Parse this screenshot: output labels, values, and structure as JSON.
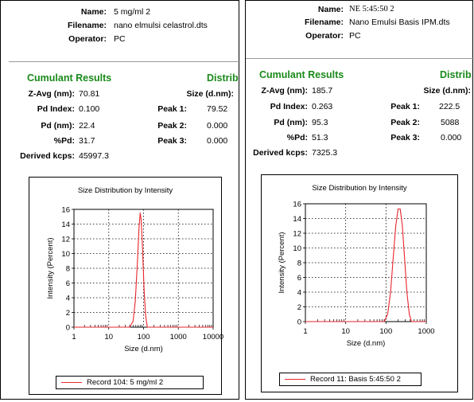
{
  "left": {
    "header": {
      "name_label": "Name:",
      "name_value": "5 mg/ml 2",
      "filename_label": "Filename:",
      "filename_value": "nano elmulsi celastrol.dts",
      "operator_label": "Operator:",
      "operator_value": "PC"
    },
    "cumulant_title": "Cumulant Results",
    "distrib_title": "Distrib",
    "size_header": "Size (d.nm):",
    "zavg_label": "Z-Avg (nm):",
    "zavg_value": "70.81",
    "pdi_label": "Pd Index:",
    "pdi_value": "0.100",
    "pd_label": "Pd (nm):",
    "pd_value": "22.4",
    "pctpd_label": "%Pd:",
    "pctpd_value": "31.7",
    "kcps_label": "Derived kcps:",
    "kcps_value": "45997.3",
    "peak1_label": "Peak 1:",
    "peak1_value": "79.52",
    "peak2_label": "Peak 2:",
    "peak2_value": "0.000",
    "peak3_label": "Peak 3:",
    "peak3_value": "0.000",
    "legend": "Record 104: 5 mg/ml 2"
  },
  "right": {
    "header": {
      "name_label": "Name:",
      "name_value": "NE 5:45:50 2",
      "filename_label": "Filename:",
      "filename_value": "Nano Emulsi Basis IPM.dts",
      "operator_label": "Operator:",
      "operator_value": "PC"
    },
    "cumulant_title": "Cumulant Results",
    "distrib_title": "Distrib",
    "size_header": "Size (d.nm):",
    "zavg_label": "Z-Avg (nm):",
    "zavg_value": "185.7",
    "pdi_label": "Pd Index:",
    "pdi_value": "0.263",
    "pd_label": "Pd (nm):",
    "pd_value": "95.3",
    "pctpd_label": "%Pd:",
    "pctpd_value": "51.3",
    "kcps_label": "Derived kcps:",
    "kcps_value": "7325.3",
    "peak1_label": "Peak 1:",
    "peak1_value": "222.5",
    "peak2_label": "Peak 2:",
    "peak2_value": "5088",
    "peak3_label": "Peak 3:",
    "peak3_value": "0.000",
    "legend": "Record 11: Basis 5:45:50 2"
  },
  "chart_data": [
    {
      "type": "line",
      "title": "Size Distribution by Intensity",
      "xlabel": "Size (d.nm)",
      "ylabel": "Intensity (Percent)",
      "x_scale": "log",
      "xlim": [
        1,
        10000
      ],
      "ylim": [
        0,
        16
      ],
      "xticks": [
        "1",
        "10",
        "100",
        "1000",
        "10000"
      ],
      "yticks": [
        "0",
        "2",
        "4",
        "6",
        "8",
        "10",
        "12",
        "14",
        "16"
      ],
      "grid": true,
      "series": [
        {
          "name": "Record 104: 5 mg/ml 2",
          "color": "#e8262c",
          "x": [
            1,
            40,
            50,
            58,
            66,
            74,
            80,
            86,
            94,
            104,
            115,
            128,
            10000
          ],
          "y": [
            0,
            0,
            0.8,
            3.5,
            8.5,
            13.5,
            15.5,
            14.5,
            10.5,
            5.0,
            1.5,
            0,
            0
          ]
        }
      ]
    },
    {
      "type": "line",
      "title": "Size Distribution by Intensity",
      "xlabel": "Size (d.nm)",
      "ylabel": "Intensity (Percent)",
      "x_scale": "log",
      "xlim": [
        1,
        1000
      ],
      "ylim": [
        0,
        16
      ],
      "xticks": [
        "1",
        "10",
        "100",
        "1000"
      ],
      "yticks": [
        "0",
        "2",
        "4",
        "6",
        "8",
        "10",
        "12",
        "14",
        "16"
      ],
      "grid": true,
      "series": [
        {
          "name": "Record 11: Basis 5:45:50 2",
          "color": "#e8262c",
          "x": [
            1,
            90,
            110,
            130,
            150,
            175,
            200,
            225,
            255,
            290,
            330,
            380,
            430,
            1000
          ],
          "y": [
            0,
            0,
            1.0,
            4.0,
            8.5,
            13.0,
            15.3,
            15.3,
            13.0,
            8.5,
            4.0,
            1.0,
            0,
            0
          ]
        }
      ]
    }
  ]
}
